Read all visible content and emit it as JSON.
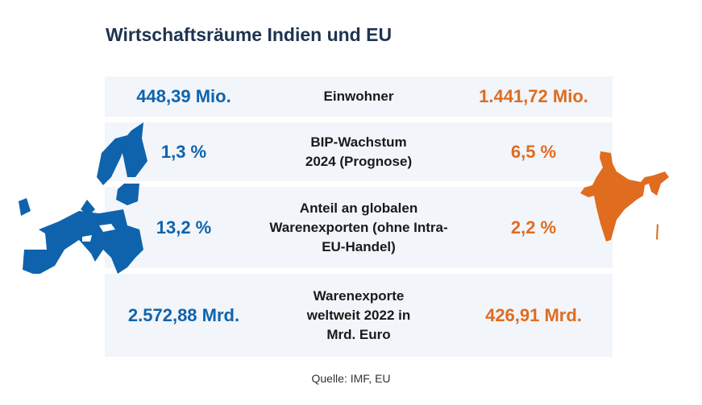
{
  "title": "Wirtschaftsräume Indien und EU",
  "colors": {
    "eu": "#0f63ad",
    "india": "#e06c1f",
    "row_bg": "#f2f5fa"
  },
  "rows": [
    {
      "eu": "448,39 Mio.",
      "label": "Einwohner",
      "india": "1.441,72 Mio."
    },
    {
      "eu": "1,3 %",
      "label": "BIP-Wachstum 2024 (Prognose)",
      "india": "6,5 %"
    },
    {
      "eu": "13,2 %",
      "label": "Anteil an globalen Warenexporten (ohne Intra-EU-Handel)",
      "india": "2,2 %"
    },
    {
      "eu": "2.572,88 Mrd.",
      "label": "Warenexporte weltweit 2022 in Mrd. Euro",
      "india": "426,91 Mrd."
    }
  ],
  "source": "Quelle: IMF, EU"
}
